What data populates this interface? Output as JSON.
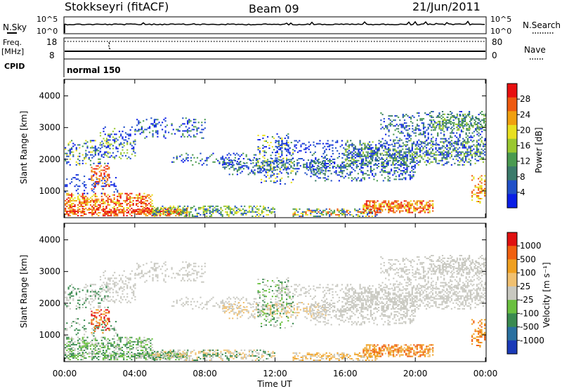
{
  "header": {
    "station": "Stokkseyri (fitACF)",
    "beam": "Beam 09",
    "date": "21/Jun/2011"
  },
  "strip": {
    "nsky_label": "N.Sky",
    "nsearch_label": "N.Search",
    "freq_label": "Freq.",
    "freq_unit": "[MHz]",
    "nave_label": "Nave",
    "cpid_label": "CPID",
    "cpid_value": "normal 150",
    "nsky_ticks": [
      "10^5",
      "10^0"
    ],
    "freq_ticks": [
      "18",
      "8"
    ],
    "nave_ticks": [
      "80",
      "0"
    ]
  },
  "chart_data": [
    {
      "type": "heatmap",
      "name": "power",
      "ylabel": "Slant Range [km]",
      "xlabel": "",
      "yticks": [
        "4000",
        "3000",
        "2000",
        "1000"
      ],
      "ylim": [
        180,
        4500
      ],
      "xlim": [
        0,
        24
      ],
      "colorbar_label": "Power [dB]",
      "colorbar_ticks": [
        "28",
        "24",
        "20",
        "16",
        "12",
        "8",
        "4"
      ],
      "colorbar_colors": [
        "#0a1ee6",
        "#2050c8",
        "#3a7a6a",
        "#4a9a50",
        "#9ac830",
        "#e8e020",
        "#f0a010",
        "#ee5a10",
        "#e81010"
      ]
    },
    {
      "type": "heatmap",
      "name": "velocity",
      "ylabel": "Slant Range [km]",
      "xlabel": "Time UT",
      "yticks": [
        "4000",
        "3000",
        "2000",
        "1000"
      ],
      "xticks": [
        "00:00",
        "04:00",
        "08:00",
        "12:00",
        "16:00",
        "20:00",
        "00:00"
      ],
      "ylim": [
        180,
        4500
      ],
      "xlim": [
        0,
        24
      ],
      "colorbar_label": "Velocity [m s⁻¹]",
      "colorbar_ticks": [
        "1000",
        "500",
        "100",
        "25",
        "-25",
        "-100",
        "-500",
        "-1000"
      ],
      "colorbar_colors": [
        "#1a3ab8",
        "#2a70a0",
        "#3a8a50",
        "#6ac040",
        "#c8c8c0",
        "#f0c070",
        "#f0a020",
        "#f06010",
        "#e01010"
      ]
    }
  ]
}
